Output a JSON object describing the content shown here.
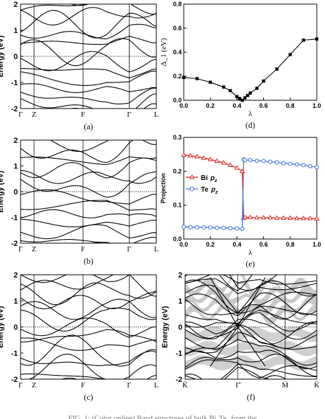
{
  "chart_data": [
    {
      "panel": "(a)",
      "type": "line",
      "ylabel": "Energy (eV)",
      "ylim": [
        -2,
        2
      ],
      "yticks": [
        "-2",
        "-1",
        "0",
        "1",
        "2"
      ],
      "xticks": [
        "Γ",
        "Z",
        "F",
        "Γ",
        "L"
      ],
      "fermi_level": 0,
      "caption": "(a)"
    },
    {
      "panel": "(d)",
      "type": "line",
      "xlabel": "λ",
      "ylabel": "Δ_1 (eV)",
      "xlim": [
        0,
        1.0
      ],
      "ylim": [
        0,
        0.8
      ],
      "xticks": [
        "0.0",
        "0.2",
        "0.4",
        "0.6",
        "0.8",
        "1.0"
      ],
      "yticks": [
        "0.0",
        "0.2",
        "0.4",
        "0.6",
        "0.8"
      ],
      "x": [
        0.0,
        0.1,
        0.2,
        0.3,
        0.35,
        0.4,
        0.42,
        0.44,
        0.46,
        0.48,
        0.5,
        0.55,
        0.6,
        0.7,
        0.8,
        0.9,
        1.0
      ],
      "values": [
        0.19,
        0.18,
        0.15,
        0.11,
        0.08,
        0.03,
        0.015,
        0.0,
        0.02,
        0.04,
        0.06,
        0.1,
        0.16,
        0.26,
        0.38,
        0.5,
        0.51
      ],
      "caption": "(d)"
    },
    {
      "panel": "(b)",
      "type": "line",
      "ylabel": "Energy (eV)",
      "ylim": [
        -2,
        2
      ],
      "yticks": [
        "-2",
        "-1",
        "0",
        "1",
        "2"
      ],
      "xticks": [
        "Γ",
        "Z",
        "F",
        "Γ",
        "L"
      ],
      "fermi_level": 0,
      "caption": "(b)"
    },
    {
      "panel": "(e)",
      "type": "line",
      "xlabel": "λ",
      "ylabel": "Projection",
      "xlim": [
        0,
        1.0
      ],
      "ylim": [
        0,
        0.3
      ],
      "xticks": [
        "0.0",
        "0.2",
        "0.4",
        "0.6",
        "0.8",
        "1.0"
      ],
      "yticks": [
        "0.0",
        "0.1",
        "0.2",
        "0.3"
      ],
      "x": [
        0.0,
        0.05,
        0.1,
        0.15,
        0.2,
        0.25,
        0.3,
        0.35,
        0.4,
        0.44,
        0.45,
        0.46,
        0.5,
        0.55,
        0.6,
        0.65,
        0.7,
        0.75,
        0.8,
        0.85,
        0.9,
        0.95,
        1.0
      ],
      "series": [
        {
          "name": "Bi",
          "sub": "p",
          "subz": "z",
          "color": "#e02020",
          "values": [
            0.248,
            0.246,
            0.243,
            0.239,
            0.235,
            0.23,
            0.225,
            0.218,
            0.21,
            0.2,
            0.062,
            0.064,
            0.064,
            0.063,
            0.063,
            0.063,
            0.062,
            0.062,
            0.062,
            0.061,
            0.061,
            0.061,
            0.06
          ]
        },
        {
          "name": "Te",
          "sub": "p",
          "subz": "z",
          "color": "#3a6fd8",
          "values": [
            0.036,
            0.035,
            0.035,
            0.034,
            0.034,
            0.033,
            0.033,
            0.032,
            0.031,
            0.03,
            0.235,
            0.233,
            0.233,
            0.231,
            0.23,
            0.228,
            0.226,
            0.224,
            0.222,
            0.22,
            0.218,
            0.215,
            0.212
          ]
        }
      ],
      "legend": "middle-left",
      "caption": "(e)"
    },
    {
      "panel": "(c)",
      "type": "line",
      "ylabel": "Energy (eV)",
      "ylim": [
        -2,
        2
      ],
      "yticks": [
        "-2",
        "-1",
        "0",
        "1",
        "2"
      ],
      "xticks": [
        "Γ",
        "Z",
        "F",
        "Γ",
        "L"
      ],
      "fermi_level": 0,
      "caption": "(c)"
    },
    {
      "panel": "(f)",
      "type": "line",
      "ylabel": "Energy (eV)",
      "ylim": [
        -2,
        2
      ],
      "yticks": [
        "-2",
        "-1",
        "0",
        "1",
        "2"
      ],
      "xticks": [
        "K̄",
        "Γ̄",
        "M̄",
        "K̄"
      ],
      "fermi_level": 0,
      "caption": "(f)"
    }
  ],
  "caption_fragment": "FIG. 1: (Color online) Band structures of bulk Bi₂Te₃ from the"
}
